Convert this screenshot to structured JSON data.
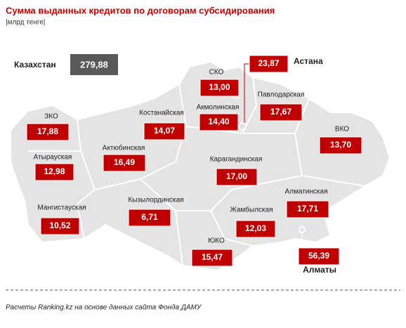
{
  "header": {
    "title": "Сумма выданных кредитов по договорам субсидирования",
    "subtitle": "|млрд тенге|"
  },
  "total": {
    "label": "Казахстан",
    "value": "279,88"
  },
  "regions": [
    {
      "label": "Астана",
      "value": "23,87"
    },
    {
      "label": "СКО",
      "value": "13,00"
    },
    {
      "label": "Павлодарская",
      "value": "17,67"
    },
    {
      "label": "Костанайская",
      "value": "14,07"
    },
    {
      "label": "Акмолинская",
      "value": "14,40"
    },
    {
      "label": "ЗКО",
      "value": "17,88"
    },
    {
      "label": "ВКО",
      "value": "13,70"
    },
    {
      "label": "Атырауская",
      "value": "12,98"
    },
    {
      "label": "Актюбинская",
      "value": "16,49"
    },
    {
      "label": "Карагандинская",
      "value": "17,00"
    },
    {
      "label": "Алматинская",
      "value": "17,71"
    },
    {
      "label": "Мангистауская",
      "value": "10,52"
    },
    {
      "label": "Кызылординская",
      "value": "6,71"
    },
    {
      "label": "Жамбылская",
      "value": "12,03"
    },
    {
      "label": "ЮКО",
      "value": "15,47"
    },
    {
      "label": "Алматы",
      "value": "56,39"
    }
  ],
  "footer": {
    "source": "Расчеты Ranking.kz на основе данных сайта Фонда ДАМУ"
  }
}
